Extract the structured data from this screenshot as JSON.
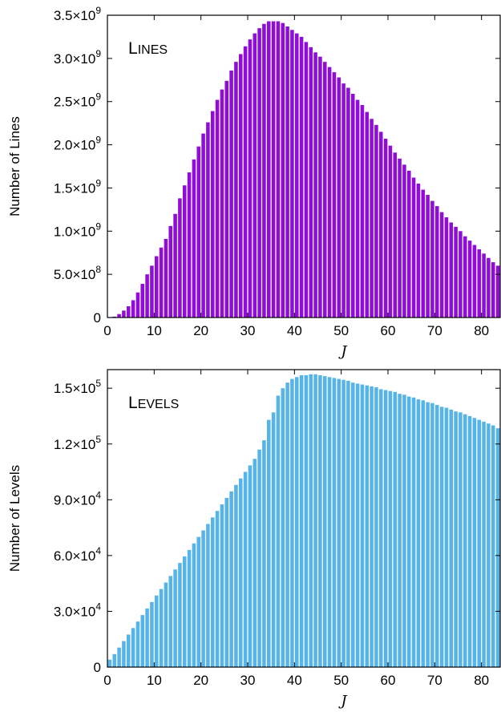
{
  "chart_data": [
    {
      "type": "bar",
      "panel_label": "LINES",
      "xlabel": "J",
      "ylabel": "Number of Lines",
      "xlim": [
        0,
        84
      ],
      "ylim": [
        0,
        3500000000
      ],
      "x_ticks": [
        "0",
        "10",
        "20",
        "30",
        "40",
        "50",
        "60",
        "70",
        "80"
      ],
      "y_ticks": [
        {
          "value": 0,
          "mantissa": "0",
          "exponent": ""
        },
        {
          "value": 500000000,
          "mantissa": "5.0×10",
          "exponent": "8"
        },
        {
          "value": 1000000000,
          "mantissa": "1.0×10",
          "exponent": "9"
        },
        {
          "value": 1500000000,
          "mantissa": "1.5×10",
          "exponent": "9"
        },
        {
          "value": 2000000000,
          "mantissa": "2.0×10",
          "exponent": "9"
        },
        {
          "value": 2500000000,
          "mantissa": "2.5×10",
          "exponent": "9"
        },
        {
          "value": 3000000000,
          "mantissa": "3.0×10",
          "exponent": "9"
        },
        {
          "value": 3500000000,
          "mantissa": "3.5×10",
          "exponent": "9"
        }
      ],
      "bar_color": "#8f0dd6",
      "x": [
        0,
        1,
        2,
        3,
        4,
        5,
        6,
        7,
        8,
        9,
        10,
        11,
        12,
        13,
        14,
        15,
        16,
        17,
        18,
        19,
        20,
        21,
        22,
        23,
        24,
        25,
        26,
        27,
        28,
        29,
        30,
        31,
        32,
        33,
        34,
        35,
        36,
        37,
        38,
        39,
        40,
        41,
        42,
        43,
        44,
        45,
        46,
        47,
        48,
        49,
        50,
        51,
        52,
        53,
        54,
        55,
        56,
        57,
        58,
        59,
        60,
        61,
        62,
        63,
        64,
        65,
        66,
        67,
        68,
        69,
        70,
        71,
        72,
        73,
        74,
        75,
        76,
        77,
        78,
        79,
        80,
        81,
        82,
        83
      ],
      "values": [
        0,
        0.01,
        0.04,
        0.08,
        0.13,
        0.2,
        0.29,
        0.39,
        0.5,
        0.6,
        0.71,
        0.81,
        0.91,
        1.06,
        1.2,
        1.38,
        1.53,
        1.68,
        1.83,
        1.98,
        2.13,
        2.26,
        2.39,
        2.52,
        2.64,
        2.74,
        2.86,
        2.96,
        3.05,
        3.14,
        3.22,
        3.29,
        3.35,
        3.4,
        3.43,
        3.43,
        3.43,
        3.41,
        3.37,
        3.33,
        3.29,
        3.25,
        3.19,
        3.13,
        3.07,
        3.02,
        2.96,
        2.9,
        2.84,
        2.78,
        2.71,
        2.66,
        2.59,
        2.52,
        2.46,
        2.38,
        2.3,
        2.23,
        2.15,
        2.07,
        1.99,
        1.91,
        1.84,
        1.77,
        1.7,
        1.62,
        1.55,
        1.48,
        1.42,
        1.35,
        1.29,
        1.22,
        1.16,
        1.1,
        1.05,
        1,
        0.94,
        0.89,
        0.84,
        0.79,
        0.74,
        0.69,
        0.64,
        0.6
      ],
      "values_unit_scale": 1000000000
    },
    {
      "type": "bar",
      "panel_label": "LEVELS",
      "xlabel": "J",
      "ylabel": "Number of Levels",
      "xlim": [
        0,
        84
      ],
      "ylim": [
        0,
        160000
      ],
      "x_ticks": [
        "0",
        "10",
        "20",
        "30",
        "40",
        "50",
        "60",
        "70",
        "80"
      ],
      "y_ticks": [
        {
          "value": 0,
          "mantissa": "0",
          "exponent": ""
        },
        {
          "value": 30000,
          "mantissa": "3.0×10",
          "exponent": "4"
        },
        {
          "value": 60000,
          "mantissa": "6.0×10",
          "exponent": "4"
        },
        {
          "value": 90000,
          "mantissa": "9.0×10",
          "exponent": "4"
        },
        {
          "value": 120000,
          "mantissa": "1.2×10",
          "exponent": "5"
        },
        {
          "value": 150000,
          "mantissa": "1.5×10",
          "exponent": "5"
        }
      ],
      "bar_color": "#56b4e9",
      "x": [
        0,
        1,
        2,
        3,
        4,
        5,
        6,
        7,
        8,
        9,
        10,
        11,
        12,
        13,
        14,
        15,
        16,
        17,
        18,
        19,
        20,
        21,
        22,
        23,
        24,
        25,
        26,
        27,
        28,
        29,
        30,
        31,
        32,
        33,
        34,
        35,
        36,
        37,
        38,
        39,
        40,
        41,
        42,
        43,
        44,
        45,
        46,
        47,
        48,
        49,
        50,
        51,
        52,
        53,
        54,
        55,
        56,
        57,
        58,
        59,
        60,
        61,
        62,
        63,
        64,
        65,
        66,
        67,
        68,
        69,
        70,
        71,
        72,
        73,
        74,
        75,
        76,
        77,
        78,
        79,
        80,
        81,
        82,
        83
      ],
      "values": [
        4,
        7,
        10.5,
        14,
        17.5,
        21,
        24.5,
        28,
        31.5,
        35,
        38.5,
        42,
        45.5,
        49,
        52.5,
        56,
        59.5,
        63,
        66.5,
        70,
        73.5,
        77,
        80.5,
        84,
        87.5,
        91,
        94.5,
        98,
        101.5,
        105,
        108.5,
        112,
        117,
        122,
        133,
        137,
        146,
        150,
        153,
        155,
        156,
        157,
        157,
        157.5,
        157.5,
        157,
        156.5,
        156,
        155.5,
        155,
        154.5,
        154,
        153,
        152.5,
        152,
        151.5,
        151,
        150.5,
        149.5,
        149,
        148.5,
        148,
        147,
        146.5,
        145.5,
        145,
        144,
        143.5,
        142.5,
        142,
        141,
        140,
        139.5,
        138.5,
        137.5,
        137,
        136,
        135,
        134,
        133,
        132,
        131,
        130,
        128.5
      ],
      "values_unit_scale": 1000
    }
  ]
}
